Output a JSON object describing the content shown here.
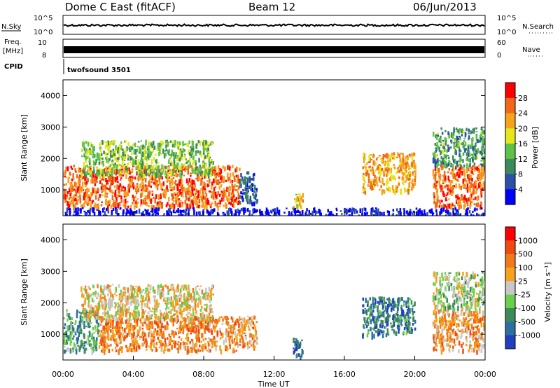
{
  "header": {
    "title": "Dome C East (fitACF)",
    "beam": "Beam 12",
    "date": "06/Jun/2013"
  },
  "panels": {
    "nsky_label": "N.Sky",
    "nsky_ticks": [
      "10^5",
      "10^0"
    ],
    "nsearch_label": "N.Search",
    "nsearch_ticks": [
      "10^5",
      "10^0"
    ],
    "freq_label_line1": "Freq.",
    "freq_label_line2": "[MHz]",
    "freq_ticks": [
      "10",
      "8"
    ],
    "nave_label": "Nave",
    "nave_ticks": [
      "60",
      "0"
    ],
    "cpid_label": "CPID",
    "cpid_value": "twofsound 3501"
  },
  "colors": {
    "power_scale": [
      "#0000ff",
      "#2c4fa8",
      "#3a8a5c",
      "#5ec24a",
      "#e6e61a",
      "#f7a21a",
      "#f06818",
      "#ff0000"
    ],
    "velocity_scale": [
      "#1f3fbf",
      "#2e6ea3",
      "#3f8a5a",
      "#6ad04a",
      "#c8c8c8",
      "#f7a21a",
      "#f07a1a",
      "#ef4a10",
      "#ff0000"
    ]
  },
  "chart_data": [
    {
      "type": "heatmap",
      "name": "power",
      "xlabel": "Time UT",
      "ylabel": "Slant Range [km]",
      "xlim": [
        0,
        24
      ],
      "ylim": [
        180,
        4500
      ],
      "xticks": [
        "00:00",
        "04:00",
        "08:00",
        "12:00",
        "16:00",
        "20:00",
        "00:00"
      ],
      "yticks": [
        "1000",
        "2000",
        "3000",
        "4000"
      ],
      "colorbar_label": "Power [dB]",
      "colorbar_ticks": [
        "28",
        "24",
        "20",
        "16",
        "12",
        "8",
        "4"
      ],
      "colorbar_range": [
        0,
        32
      ],
      "regions": [
        {
          "t": [
            0.0,
            10.0
          ],
          "r": [
            500,
            1800
          ],
          "level": 0.8
        },
        {
          "t": [
            1.0,
            8.5
          ],
          "r": [
            1500,
            2600
          ],
          "level": 0.45
        },
        {
          "t": [
            10.0,
            11.0
          ],
          "r": [
            600,
            1600
          ],
          "level": 0.2
        },
        {
          "t": [
            13.0,
            13.6
          ],
          "r": [
            300,
            900
          ],
          "level": 0.6
        },
        {
          "t": [
            17.0,
            20.0
          ],
          "r": [
            1000,
            2200
          ],
          "level": 0.7
        },
        {
          "t": [
            21.0,
            24.0
          ],
          "r": [
            500,
            1800
          ],
          "level": 0.8
        },
        {
          "t": [
            21.0,
            24.0
          ],
          "r": [
            1800,
            3000
          ],
          "level": 0.35
        },
        {
          "t": [
            0.0,
            24.0
          ],
          "r": [
            200,
            450
          ],
          "level": 0.05
        }
      ]
    },
    {
      "type": "heatmap",
      "name": "velocity",
      "xlabel": "Time UT",
      "ylabel": "Slant Range [km]",
      "xlim": [
        0,
        24
      ],
      "ylim": [
        180,
        4500
      ],
      "xticks": [
        "00:00",
        "04:00",
        "08:00",
        "12:00",
        "16:00",
        "20:00",
        "00:00"
      ],
      "yticks": [
        "1000",
        "2000",
        "3000",
        "4000"
      ],
      "colorbar_label": "Velocity [m s⁻¹]",
      "colorbar_ticks": [
        "1000",
        "500",
        "100",
        "25",
        "-25",
        "-100",
        "-500",
        "-1000"
      ],
      "colorbar_range": [
        -1500,
        1500
      ],
      "regions": [
        {
          "t": [
            0.0,
            2.0
          ],
          "r": [
            500,
            1800
          ],
          "level": 0.3
        },
        {
          "t": [
            2.0,
            10.0
          ],
          "r": [
            500,
            1600
          ],
          "level": 0.7
        },
        {
          "t": [
            1.0,
            8.5
          ],
          "r": [
            1500,
            2600
          ],
          "level": 0.55
        },
        {
          "t": [
            10.0,
            11.0
          ],
          "r": [
            600,
            1600
          ],
          "level": 0.65
        },
        {
          "t": [
            13.0,
            13.6
          ],
          "r": [
            300,
            900
          ],
          "level": 0.15
        },
        {
          "t": [
            17.0,
            20.0
          ],
          "r": [
            1000,
            2200
          ],
          "level": 0.2
        },
        {
          "t": [
            21.0,
            24.0
          ],
          "r": [
            500,
            1800
          ],
          "level": 0.65
        },
        {
          "t": [
            21.0,
            24.0
          ],
          "r": [
            1800,
            3000
          ],
          "level": 0.45
        }
      ]
    }
  ]
}
